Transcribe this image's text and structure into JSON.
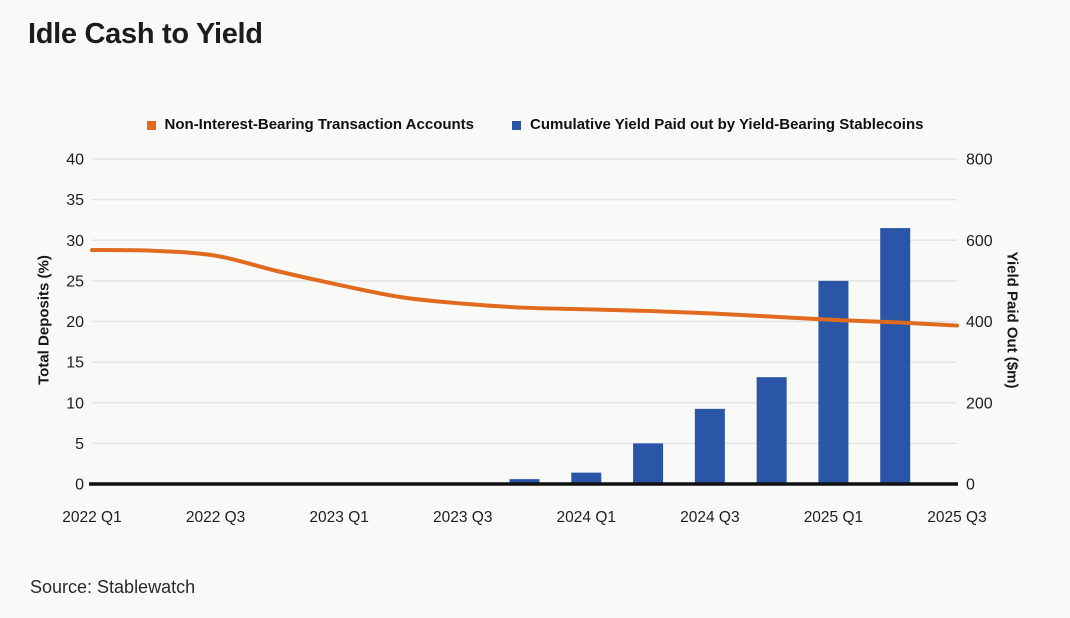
{
  "header": {
    "title": "Idle Cash to Yield"
  },
  "source": {
    "label": "Source: Stablewatch"
  },
  "colors": {
    "background": "#f9f9f8",
    "grid": "#e5e4e2",
    "axis_line": "#111111",
    "text": "#1e1e1e",
    "line_series": "#e06a1e",
    "bar_series": "#2b56a7"
  },
  "chart_data": {
    "type": "mixed-bar-line",
    "title": "Idle Cash to Yield",
    "categories": [
      "2022 Q1",
      "2022 Q2",
      "2022 Q3",
      "2022 Q4",
      "2023 Q1",
      "2023 Q2",
      "2023 Q3",
      "2023 Q4",
      "2024 Q1",
      "2024 Q2",
      "2024 Q3",
      "2024 Q4",
      "2025 Q1",
      "2025 Q2",
      "2025 Q3"
    ],
    "x_label_every": 2,
    "series": [
      {
        "name": "Non-Interest-Bearing Transaction Accounts",
        "type": "line",
        "axis": "left",
        "color": "#e06a1e",
        "values": [
          28.8,
          28.7,
          28.1,
          26.2,
          24.5,
          23.0,
          22.2,
          21.7,
          21.5,
          21.3,
          21.0,
          20.6,
          20.2,
          19.9,
          19.5
        ]
      },
      {
        "name": "Cumulative Yield Paid out by Yield-Bearing Stablecoins",
        "type": "bar",
        "axis": "right",
        "color": "#2b56a7",
        "values": [
          null,
          null,
          null,
          null,
          null,
          null,
          null,
          12,
          28,
          100,
          185,
          263,
          500,
          630,
          null
        ]
      }
    ],
    "left_axis": {
      "label": "Total Deposits (%)",
      "min": 0,
      "max": 40,
      "ticks": [
        0,
        5,
        10,
        15,
        20,
        25,
        30,
        35,
        40
      ]
    },
    "right_axis": {
      "label": "Yield Paid Out ($m)",
      "min": 0,
      "max": 800,
      "ticks": [
        0,
        200,
        400,
        600,
        800
      ]
    },
    "grid": true,
    "legend_position": "top-center"
  }
}
